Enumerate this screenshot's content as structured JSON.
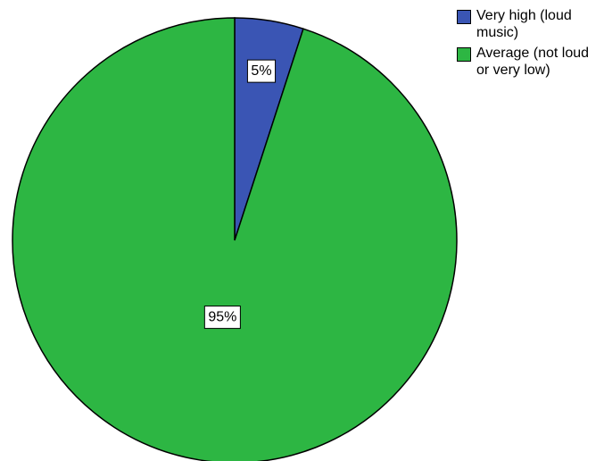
{
  "chart_data": {
    "type": "pie",
    "slices": [
      {
        "name": "Very high (loud music)",
        "value": 5,
        "label": "5%",
        "color": "#3a55b4"
      },
      {
        "name": "Average (not loud or very low)",
        "value": 95,
        "label": "95%",
        "color": "#2db643"
      }
    ],
    "legend_position": "top-right"
  }
}
